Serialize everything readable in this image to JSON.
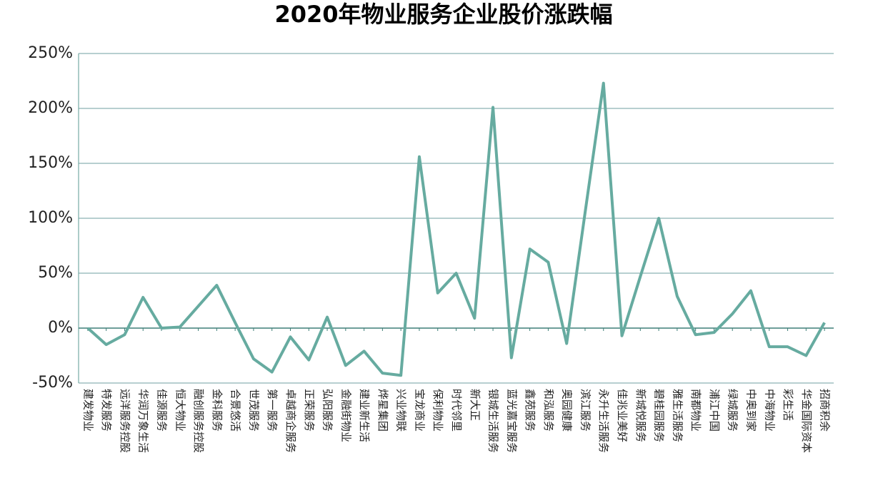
{
  "chart_data": {
    "type": "line",
    "title": "2020年物业服务企业股价涨跌幅",
    "categories": [
      "建发物业",
      "特发服务",
      "远洋服务控股",
      "华润万象生活",
      "佳源服务",
      "恒大物业",
      "融创服务控股",
      "金科服务",
      "合景悠活",
      "世茂服务",
      "第一服务",
      "卓越商企服务",
      "正荣服务",
      "弘阳服务",
      "金融街物业",
      "建业新生活",
      "烨星集团",
      "兴业物联",
      "宝龙商业",
      "保利物业",
      "时代邻里",
      "新大正",
      "银城生活服务",
      "蓝光嘉宝服务",
      "鑫苑服务",
      "和泓服务",
      "奥园健康",
      "滨江服务",
      "永升生活服务",
      "佳兆业美好",
      "新城悦服务",
      "碧桂园服务",
      "雅生活服务",
      "南都物业",
      "浦江中国",
      "绿城服务",
      "中奥到家",
      "中海物业",
      "彩生活",
      "华金国际资本",
      "招商积余"
    ],
    "values": [
      0,
      -15,
      -6,
      28,
      0,
      1,
      20,
      39,
      5,
      -28,
      -40,
      -8,
      -29,
      10,
      -34,
      -21,
      -41,
      -43,
      156,
      32,
      50,
      9,
      201,
      -27,
      72,
      60,
      -14,
      105,
      223,
      -7,
      47,
      100,
      29,
      -6,
      -4,
      13,
      34,
      -17,
      -17,
      -25,
      5
    ],
    "color": "#66aba0",
    "ylim": [
      -50,
      250
    ],
    "yticks": [
      {
        "value": -50,
        "label": "-50%"
      },
      {
        "value": 0,
        "label": "0%"
      },
      {
        "value": 50,
        "label": "50%"
      },
      {
        "value": 100,
        "label": "100%"
      },
      {
        "value": 150,
        "label": "150%"
      },
      {
        "value": 200,
        "label": "200%"
      },
      {
        "value": 250,
        "label": "250%"
      }
    ],
    "grid": true
  }
}
